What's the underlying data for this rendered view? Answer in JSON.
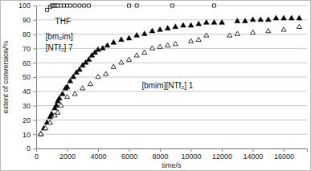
{
  "chart_data": {
    "type": "scatter",
    "x_label": "time/s",
    "y_label": "extent of conversion/%",
    "xlim": [
      0,
      17500
    ],
    "ylim": [
      0,
      100
    ],
    "xticks": [
      0,
      2000,
      4000,
      6000,
      8000,
      10000,
      12000,
      14000,
      16000
    ],
    "yticks": [
      0,
      10,
      20,
      30,
      40,
      50,
      60,
      70,
      80,
      90,
      100
    ],
    "grid": true,
    "annotations": [
      "THF",
      "[bm₂im]",
      "[NTf₂] 7",
      "[bmim][NTf₂] 1"
    ],
    "series": [
      {
        "color": "#000000",
        "marker": "square-open",
        "x": [
          700,
          900,
          1000,
          1100,
          1200,
          1300,
          1400,
          1600,
          1800,
          2000,
          2200,
          2500,
          2800,
          3100,
          3400,
          6000,
          6500,
          8800,
          11500
        ],
        "values": [
          97,
          99,
          100,
          100,
          100,
          100,
          100,
          100,
          100,
          100,
          100,
          100,
          100,
          100,
          100,
          100,
          100,
          100,
          100
        ]
      },
      {
        "color": "#000000",
        "marker": "triangle",
        "x": [
          300,
          500,
          700,
          900,
          1000,
          1200,
          1300,
          1400,
          1500,
          1700,
          1900,
          2000,
          2200,
          2400,
          2600,
          2800,
          3000,
          3200,
          3400,
          3600,
          3800,
          4000,
          4300,
          4600,
          5000,
          5500,
          6000,
          6500,
          7000,
          7500,
          8000,
          8500,
          9000,
          9500,
          10000,
          10500,
          11000,
          11500,
          12000,
          13000,
          13500,
          14000,
          14500,
          15000,
          15500,
          16000,
          16500,
          17000
        ],
        "values": [
          10,
          14,
          18,
          22,
          24,
          28,
          30,
          33,
          35,
          38,
          42,
          43,
          47,
          50,
          53,
          55,
          58,
          60,
          62,
          65,
          67,
          69,
          70,
          72,
          74,
          76,
          77,
          79,
          80,
          82,
          83,
          84,
          85,
          86,
          86,
          87,
          88,
          88,
          88,
          89,
          89,
          90,
          90,
          90,
          91,
          91,
          91,
          91
        ]
      },
      {
        "color": "#000000",
        "marker": "triangle-open",
        "x": [
          300,
          600,
          900,
          1200,
          1400,
          1600,
          2000,
          2500,
          3000,
          3500,
          4000,
          4500,
          5000,
          5500,
          6000,
          6500,
          7000,
          7500,
          8000,
          8500,
          9000,
          10000,
          10500,
          11000,
          12500,
          13000,
          14000,
          15000,
          16000,
          17000
        ],
        "values": [
          10,
          14,
          18,
          23,
          25,
          30,
          36,
          38,
          42,
          45,
          50,
          52,
          57,
          60,
          62,
          65,
          67,
          70,
          71,
          72,
          73,
          75,
          76,
          79,
          79,
          80,
          81,
          82,
          83,
          85
        ]
      }
    ]
  }
}
